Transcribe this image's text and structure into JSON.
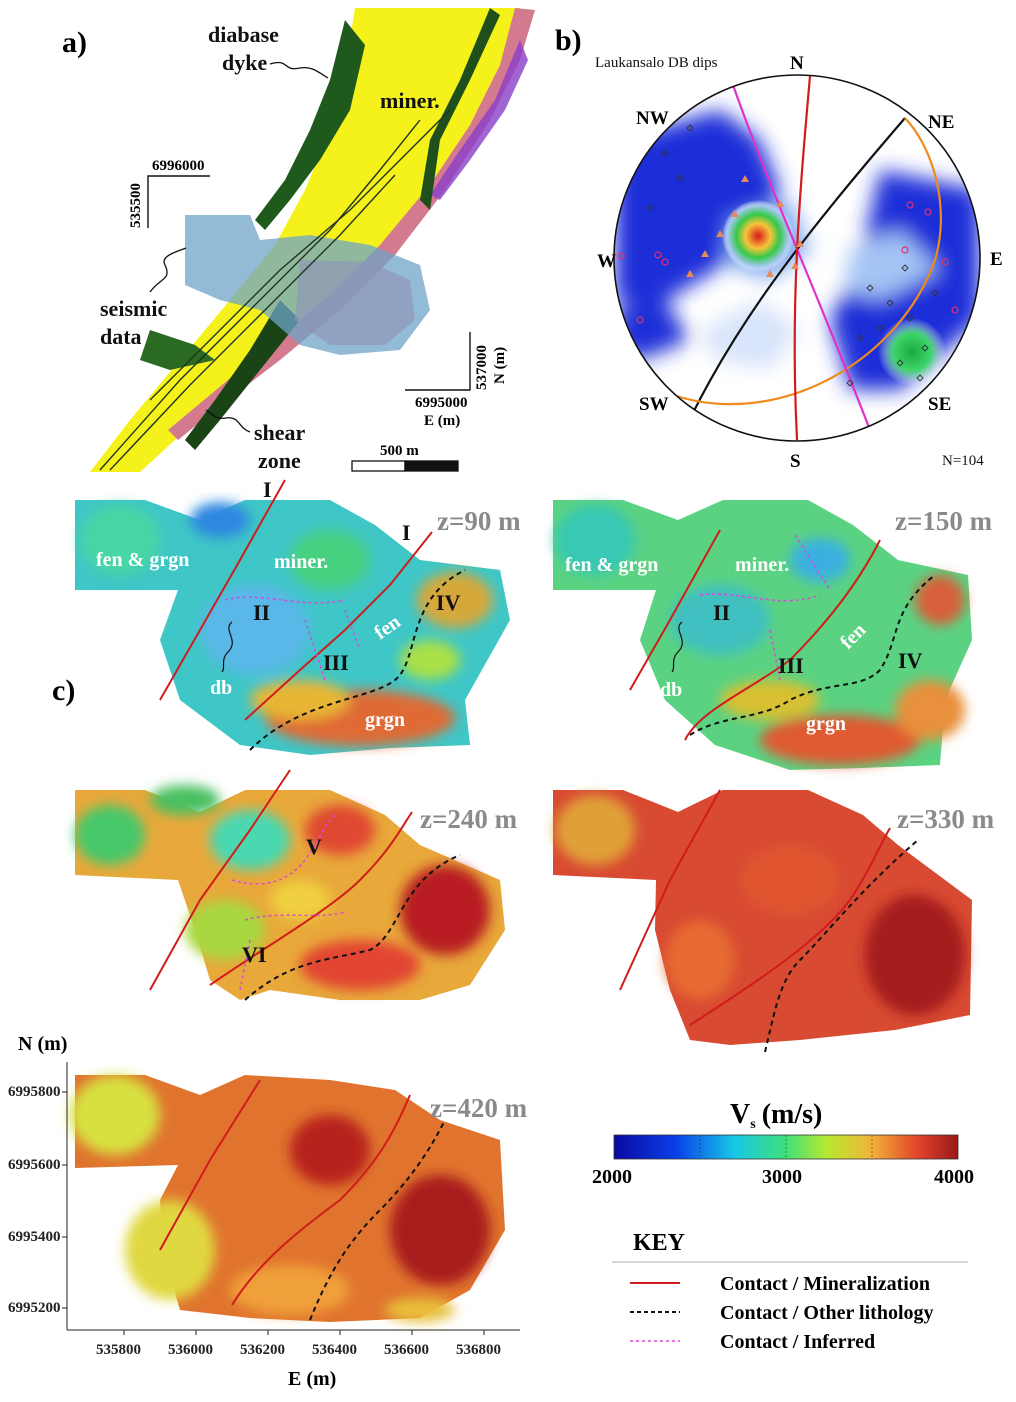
{
  "panel_a": {
    "letter": "a)",
    "labels": {
      "dyke_1": "diabase",
      "dyke_2": "dyke",
      "miner": "miner.",
      "seismic_1": "seismic",
      "seismic_2": "data",
      "shear_1": "shear",
      "shear_2": "zone"
    },
    "coord_tl_e": "6996000",
    "coord_tl_n": "535500",
    "coord_br_n": "537000",
    "coord_br_n_unit": "N (m)",
    "coord_br_e": "6995000",
    "coord_br_e_unit": "E (m)",
    "scalebar": "500 m"
  },
  "panel_b": {
    "letter": "b)",
    "title": "Laukansalo DB dips",
    "directions": {
      "n": "N",
      "ne": "NE",
      "e": "E",
      "se": "SE",
      "s": "S",
      "sw": "SW",
      "w": "W",
      "nw": "NW"
    },
    "count": "N=104"
  },
  "panel_c": {
    "letter": "c)",
    "depths": [
      "z=90 m",
      "z=150 m",
      "z=240 m",
      "z=330 m",
      "z=420 m"
    ],
    "labels": {
      "I": "I",
      "II": "II",
      "III": "III",
      "IV": "IV",
      "V": "V",
      "VI": "VI",
      "fen_grgn": "fen & grgn",
      "miner": "miner.",
      "fen": "fen",
      "grgn": "grgn",
      "db": "db"
    },
    "y_axis_title": "N (m)",
    "y_ticks": [
      "6995800",
      "6995600",
      "6995400",
      "6995200"
    ],
    "x_axis_title": "E (m)",
    "x_ticks": [
      "535800",
      "536000",
      "536200",
      "536400",
      "536600",
      "536800"
    ]
  },
  "colorbar": {
    "title": "V",
    "title_sub": "s",
    "title_unit": "(m/s)",
    "ticks": [
      "2000",
      "3000",
      "4000"
    ],
    "colors": [
      "#0a0aa0",
      "#0a3fe8",
      "#17c8e6",
      "#40e07a",
      "#b8e830",
      "#f2b23a",
      "#e2452c",
      "#9a1818"
    ]
  },
  "key": {
    "title": "KEY",
    "items": [
      {
        "label": "Contact / Mineralization",
        "color": "#d01c1c",
        "style": "solid"
      },
      {
        "label": "Contact / Other lithology",
        "color": "#111111",
        "style": "dashed"
      },
      {
        "label": "Contact / Inferred",
        "color": "#d84ad8",
        "style": "dotted"
      }
    ]
  }
}
